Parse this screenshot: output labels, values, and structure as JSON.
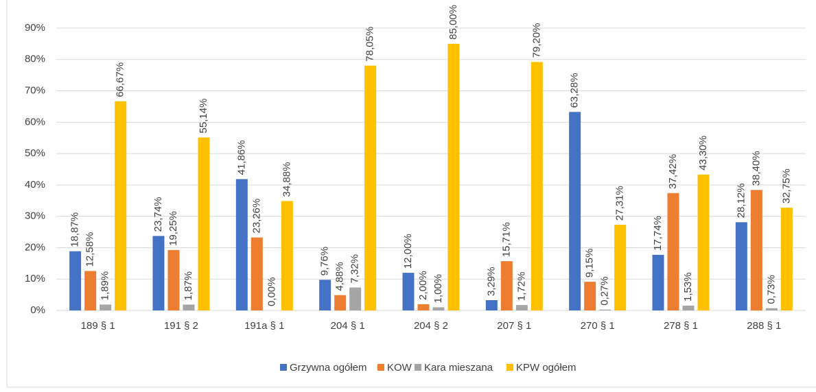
{
  "chart_data": {
    "type": "bar",
    "categories": [
      "189 § 1",
      "191 § 2",
      "191a § 1",
      "204 § 1",
      "204 § 2",
      "207 § 1",
      "270 § 1",
      "278 § 1",
      "288 § 1"
    ],
    "series": [
      {
        "name": "Grzywna ogółem",
        "color": "#4472c4",
        "values": [
          18.87,
          23.74,
          41.86,
          9.76,
          12.0,
          3.29,
          63.28,
          17.74,
          28.12
        ],
        "value_labels": [
          "18,87%",
          "23,74%",
          "41,86%",
          "9,76%",
          "12,00%",
          "3,29%",
          "63,28%",
          "17,74%",
          "28,12%"
        ]
      },
      {
        "name": "KOW",
        "color": "#ed7d31",
        "values": [
          12.58,
          19.25,
          23.26,
          4.88,
          2.0,
          15.71,
          9.15,
          37.42,
          38.4
        ],
        "value_labels": [
          "12,58%",
          "19,25%",
          "23,26%",
          "4,88%",
          "2,00%",
          "15,71%",
          "9,15%",
          "37,42%",
          "38,40%"
        ]
      },
      {
        "name": "Kara mieszana",
        "color": "#a5a5a5",
        "values": [
          1.89,
          1.87,
          0.0,
          7.32,
          1.0,
          1.72,
          0.27,
          1.53,
          0.73
        ],
        "value_labels": [
          "1,89%",
          "1,87%",
          "0,00%",
          "7,32%",
          "1,00%",
          "1,72%",
          "0,27%",
          "1,53%",
          "0,73%"
        ]
      },
      {
        "name": "KPW ogółem",
        "color": "#ffc000",
        "values": [
          66.67,
          55.14,
          34.88,
          78.05,
          85.0,
          79.2,
          27.31,
          43.3,
          32.75
        ],
        "value_labels": [
          "66,67%",
          "55,14%",
          "34,88%",
          "78,05%",
          "85,00%",
          "79,20%",
          "27,31%",
          "43,30%",
          "32,75%"
        ]
      }
    ],
    "ylim": [
      0,
      90
    ],
    "yticks": [
      {
        "value": 0,
        "label": "0%"
      },
      {
        "value": 10,
        "label": "10%"
      },
      {
        "value": 20,
        "label": "20%"
      },
      {
        "value": 30,
        "label": "30%"
      },
      {
        "value": 40,
        "label": "40%"
      },
      {
        "value": 50,
        "label": "50%"
      },
      {
        "value": 60,
        "label": "60%"
      },
      {
        "value": 70,
        "label": "70%"
      },
      {
        "value": 80,
        "label": "80%"
      },
      {
        "value": 90,
        "label": "90%"
      }
    ],
    "grid": true,
    "legend": "bottom"
  }
}
